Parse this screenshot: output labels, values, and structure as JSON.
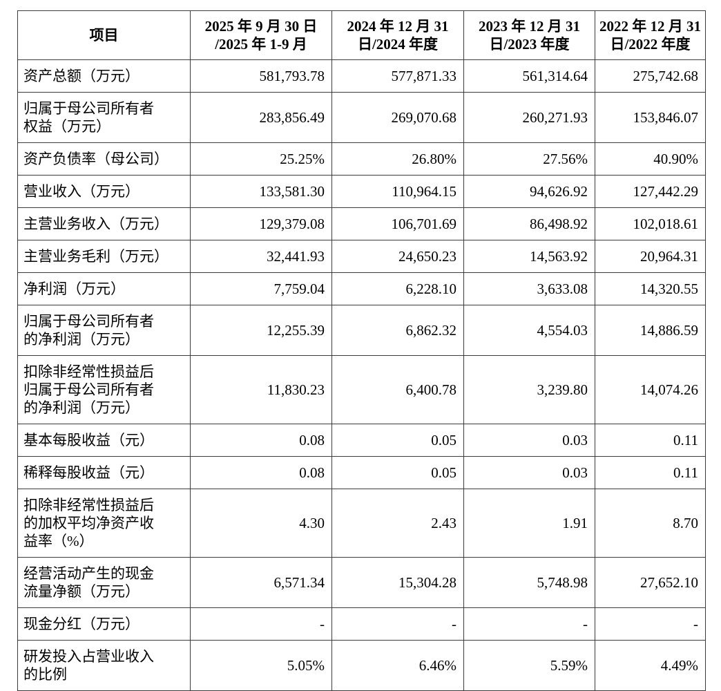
{
  "style": {
    "background": "#ffffff",
    "border_color": "#3a3a3a",
    "text_color": "#000000"
  },
  "table": {
    "columns": [
      {
        "label": "项目"
      },
      {
        "label": "2025 年 9 月 30 日\n/2025 年 1-9 月"
      },
      {
        "label": "2024 年 12 月 31\n日/2024 年度"
      },
      {
        "label": "2023 年 12 月 31\n日/2023 年度"
      },
      {
        "label": "2022 年 12 月 31\n日/2022 年度"
      }
    ],
    "rows": [
      {
        "label": "资产总额（万元）",
        "values": [
          "581,793.78",
          "577,871.33",
          "561,314.64",
          "275,742.68"
        ]
      },
      {
        "label": "归属于母公司所有者\n权益（万元）",
        "values": [
          "283,856.49",
          "269,070.68",
          "260,271.93",
          "153,846.07"
        ]
      },
      {
        "label": "资产负债率（母公司）",
        "values": [
          "25.25%",
          "26.80%",
          "27.56%",
          "40.90%"
        ]
      },
      {
        "label": "营业收入（万元）",
        "values": [
          "133,581.30",
          "110,964.15",
          "94,626.92",
          "127,442.29"
        ]
      },
      {
        "label": "主营业务收入（万元）",
        "values": [
          "129,379.08",
          "106,701.69",
          "86,498.92",
          "102,018.61"
        ]
      },
      {
        "label": "主营业务毛利（万元）",
        "values": [
          "32,441.93",
          "24,650.23",
          "14,563.92",
          "20,964.31"
        ]
      },
      {
        "label": "净利润（万元）",
        "values": [
          "7,759.04",
          "6,228.10",
          "3,633.08",
          "14,320.55"
        ]
      },
      {
        "label": "归属于母公司所有者\n的净利润（万元）",
        "values": [
          "12,255.39",
          "6,862.32",
          "4,554.03",
          "14,886.59"
        ]
      },
      {
        "label": "扣除非经常性损益后\n归属于母公司所有者\n的净利润（万元）",
        "values": [
          "11,830.23",
          "6,400.78",
          "3,239.80",
          "14,074.26"
        ]
      },
      {
        "label": "基本每股收益（元）",
        "values": [
          "0.08",
          "0.05",
          "0.03",
          "0.11"
        ]
      },
      {
        "label": "稀释每股收益（元）",
        "values": [
          "0.08",
          "0.05",
          "0.03",
          "0.11"
        ]
      },
      {
        "label": "扣除非经常性损益后\n的加权平均净资产收\n益率（%）",
        "values": [
          "4.30",
          "2.43",
          "1.91",
          "8.70"
        ]
      },
      {
        "label": "经营活动产生的现金\n流量净额（万元）",
        "values": [
          "6,571.34",
          "15,304.28",
          "5,748.98",
          "27,652.10"
        ]
      },
      {
        "label": "现金分红（万元）",
        "values": [
          "-",
          "-",
          "-",
          "-"
        ]
      },
      {
        "label": "研发投入占营业收入\n的比例",
        "values": [
          "5.05%",
          "6.46%",
          "5.59%",
          "4.49%"
        ]
      }
    ]
  }
}
